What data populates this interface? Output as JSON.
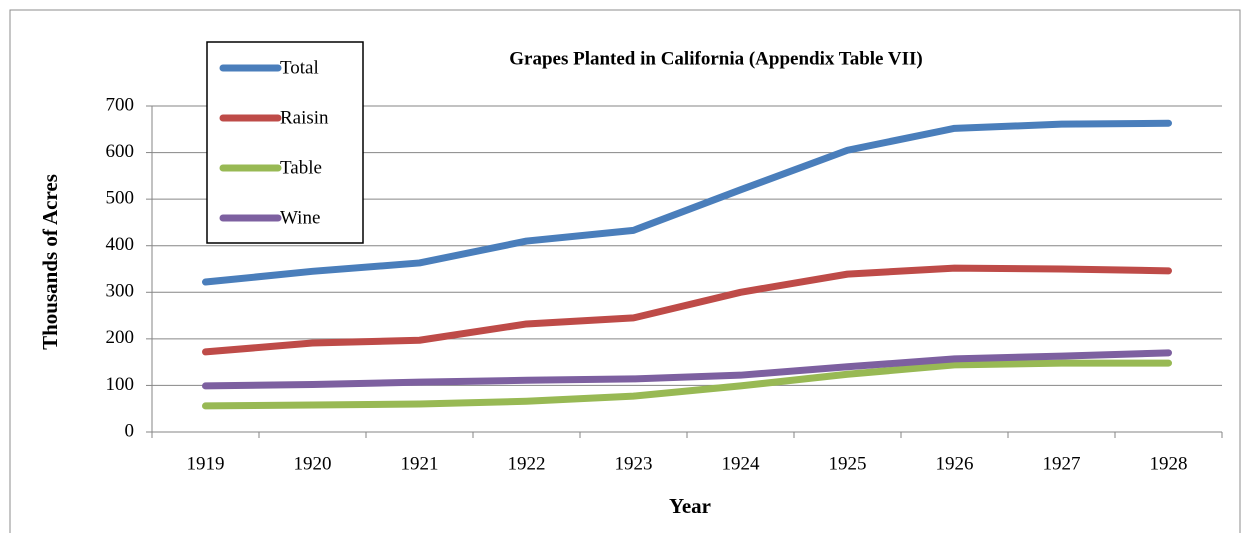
{
  "chart_data": {
    "type": "line",
    "title": "Grapes Planted in California (Appendix Table VII)",
    "x_label": "Year",
    "y_label": "Thousands of Acres",
    "categories": [
      "1919",
      "1920",
      "1921",
      "1922",
      "1923",
      "1924",
      "1925",
      "1926",
      "1927",
      "1928"
    ],
    "series": [
      {
        "name": "Total",
        "color": "#4a7ebb",
        "values": [
          322,
          345,
          363,
          410,
          433,
          520,
          605,
          652,
          661,
          663
        ]
      },
      {
        "name": "Raisin",
        "color": "#be4b48",
        "values": [
          172,
          191,
          197,
          232,
          245,
          300,
          339,
          352,
          350,
          346
        ]
      },
      {
        "name": "Table",
        "color": "#98b954",
        "values": [
          56,
          58,
          60,
          66,
          77,
          99,
          124,
          144,
          148,
          148
        ]
      },
      {
        "name": "Wine",
        "color": "#7d60a0",
        "values": [
          99,
          102,
          107,
          111,
          114,
          122,
          140,
          157,
          163,
          170
        ]
      }
    ],
    "ylim": [
      0,
      700
    ],
    "yticks": [
      0,
      100,
      200,
      300,
      400,
      500,
      600,
      700
    ],
    "grid": true,
    "legend": "top-left"
  }
}
